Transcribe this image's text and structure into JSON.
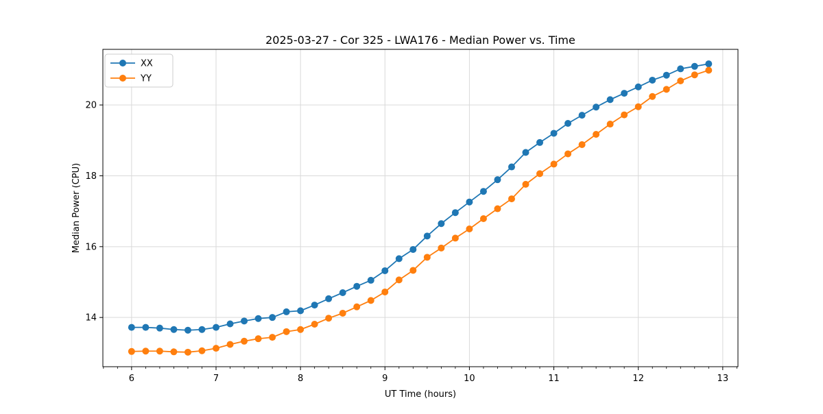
{
  "figure": {
    "background": "#ffffff"
  },
  "chart_data": {
    "type": "line",
    "title": "2025-03-27 - Cor 325 - LWA176 - Median Power vs. Time",
    "xlabel": "UT Time (hours)",
    "ylabel": "Median Power (CPU)",
    "xlim": [
      5.66,
      13.18
    ],
    "ylim": [
      12.61,
      21.57
    ],
    "xticks": [
      6,
      7,
      8,
      9,
      10,
      11,
      12,
      13
    ],
    "yticks": [
      14,
      16,
      18,
      20
    ],
    "x_minor_step": 0.16667,
    "grid": true,
    "grid_color": "#d9d9d9",
    "spine_color": "#000000",
    "legend_position": "upper-left",
    "marker": "circle",
    "marker_radius": 5,
    "line_width": 1.8,
    "x": [
      6.0,
      6.1667,
      6.3333,
      6.5,
      6.6667,
      6.8333,
      7.0,
      7.1667,
      7.3333,
      7.5,
      7.6667,
      7.8333,
      8.0,
      8.1667,
      8.3333,
      8.5,
      8.6667,
      8.8333,
      9.0,
      9.1667,
      9.3333,
      9.5,
      9.6667,
      9.8333,
      10.0,
      10.1667,
      10.3333,
      10.5,
      10.6667,
      10.8333,
      11.0,
      11.1667,
      11.3333,
      11.5,
      11.6667,
      11.8333,
      12.0,
      12.1667,
      12.3333,
      12.5,
      12.6667,
      12.8333
    ],
    "series": [
      {
        "name": "XX",
        "color": "#1f77b4",
        "values": [
          13.72,
          13.72,
          13.7,
          13.66,
          13.64,
          13.66,
          13.72,
          13.82,
          13.9,
          13.97,
          14.0,
          14.16,
          14.19,
          14.35,
          14.53,
          14.7,
          14.88,
          15.05,
          15.32,
          15.66,
          15.92,
          16.3,
          16.65,
          16.96,
          17.26,
          17.56,
          17.89,
          18.25,
          18.66,
          18.94,
          19.2,
          19.48,
          19.71,
          19.94,
          20.15,
          20.33,
          20.51,
          20.7,
          20.84,
          21.02,
          21.09,
          21.16
        ]
      },
      {
        "name": "YY",
        "color": "#ff7f0e",
        "values": [
          13.04,
          13.05,
          13.05,
          13.03,
          13.02,
          13.06,
          13.13,
          13.24,
          13.33,
          13.4,
          13.44,
          13.6,
          13.66,
          13.81,
          13.98,
          14.12,
          14.3,
          14.48,
          14.72,
          15.06,
          15.33,
          15.7,
          15.96,
          16.24,
          16.5,
          16.79,
          17.07,
          17.35,
          17.76,
          18.06,
          18.33,
          18.62,
          18.88,
          19.17,
          19.46,
          19.72,
          19.95,
          20.24,
          20.44,
          20.68,
          20.85,
          20.98
        ]
      }
    ]
  }
}
